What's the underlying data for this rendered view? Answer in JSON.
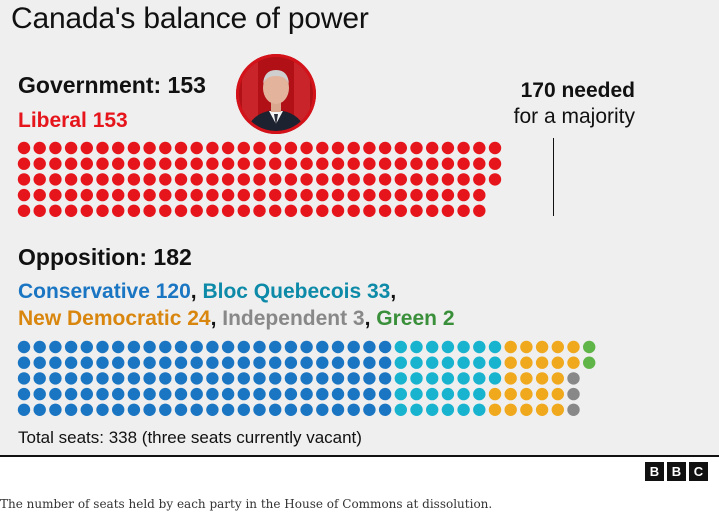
{
  "title": "Canada's balance of power",
  "government": {
    "label": "Government: 153",
    "party": "Liberal 153"
  },
  "majority": {
    "number_text": "170 needed",
    "text": "for a majority"
  },
  "opposition": {
    "label": "Opposition: 182",
    "line1": [
      {
        "text": "Conservative 120",
        "color": "#1a75c2"
      },
      {
        "text": ", ",
        "color": "#111111"
      },
      {
        "text": "Bloc Quebecois 33",
        "color": "#0d8aa8"
      },
      {
        "text": ",",
        "color": "#111111"
      }
    ],
    "line2": [
      {
        "text": "New Democratic 24",
        "color": "#d9860f"
      },
      {
        "text": ", ",
        "color": "#111111"
      },
      {
        "text": "Independent 3",
        "color": "#888888"
      },
      {
        "text": ", ",
        "color": "#111111"
      },
      {
        "text": "Green 2",
        "color": "#3a8f3a"
      }
    ]
  },
  "total": "Total seats: 338 (three seats currently vacant)",
  "caption": "The number of seats held by each party in the House of Commons at dissolution.",
  "logo": [
    "B",
    "B",
    "C"
  ],
  "chart_data": {
    "type": "waffle",
    "majority_threshold": 170,
    "total_seats": 338,
    "vacant": 3,
    "groups": [
      {
        "name": "Government",
        "parties": [
          {
            "name": "Liberal",
            "seats": 153,
            "color": "#e6141b"
          }
        ]
      },
      {
        "name": "Opposition",
        "parties": [
          {
            "name": "Conservative",
            "seats": 120,
            "color": "#1a75c2"
          },
          {
            "name": "Bloc Quebecois",
            "seats": 33,
            "color": "#17b3cf"
          },
          {
            "name": "New Democratic",
            "seats": 24,
            "color": "#f0a81c"
          },
          {
            "name": "Independent",
            "seats": 3,
            "color": "#888888"
          },
          {
            "name": "Green",
            "seats": 2,
            "color": "#5fb548"
          }
        ]
      }
    ]
  }
}
